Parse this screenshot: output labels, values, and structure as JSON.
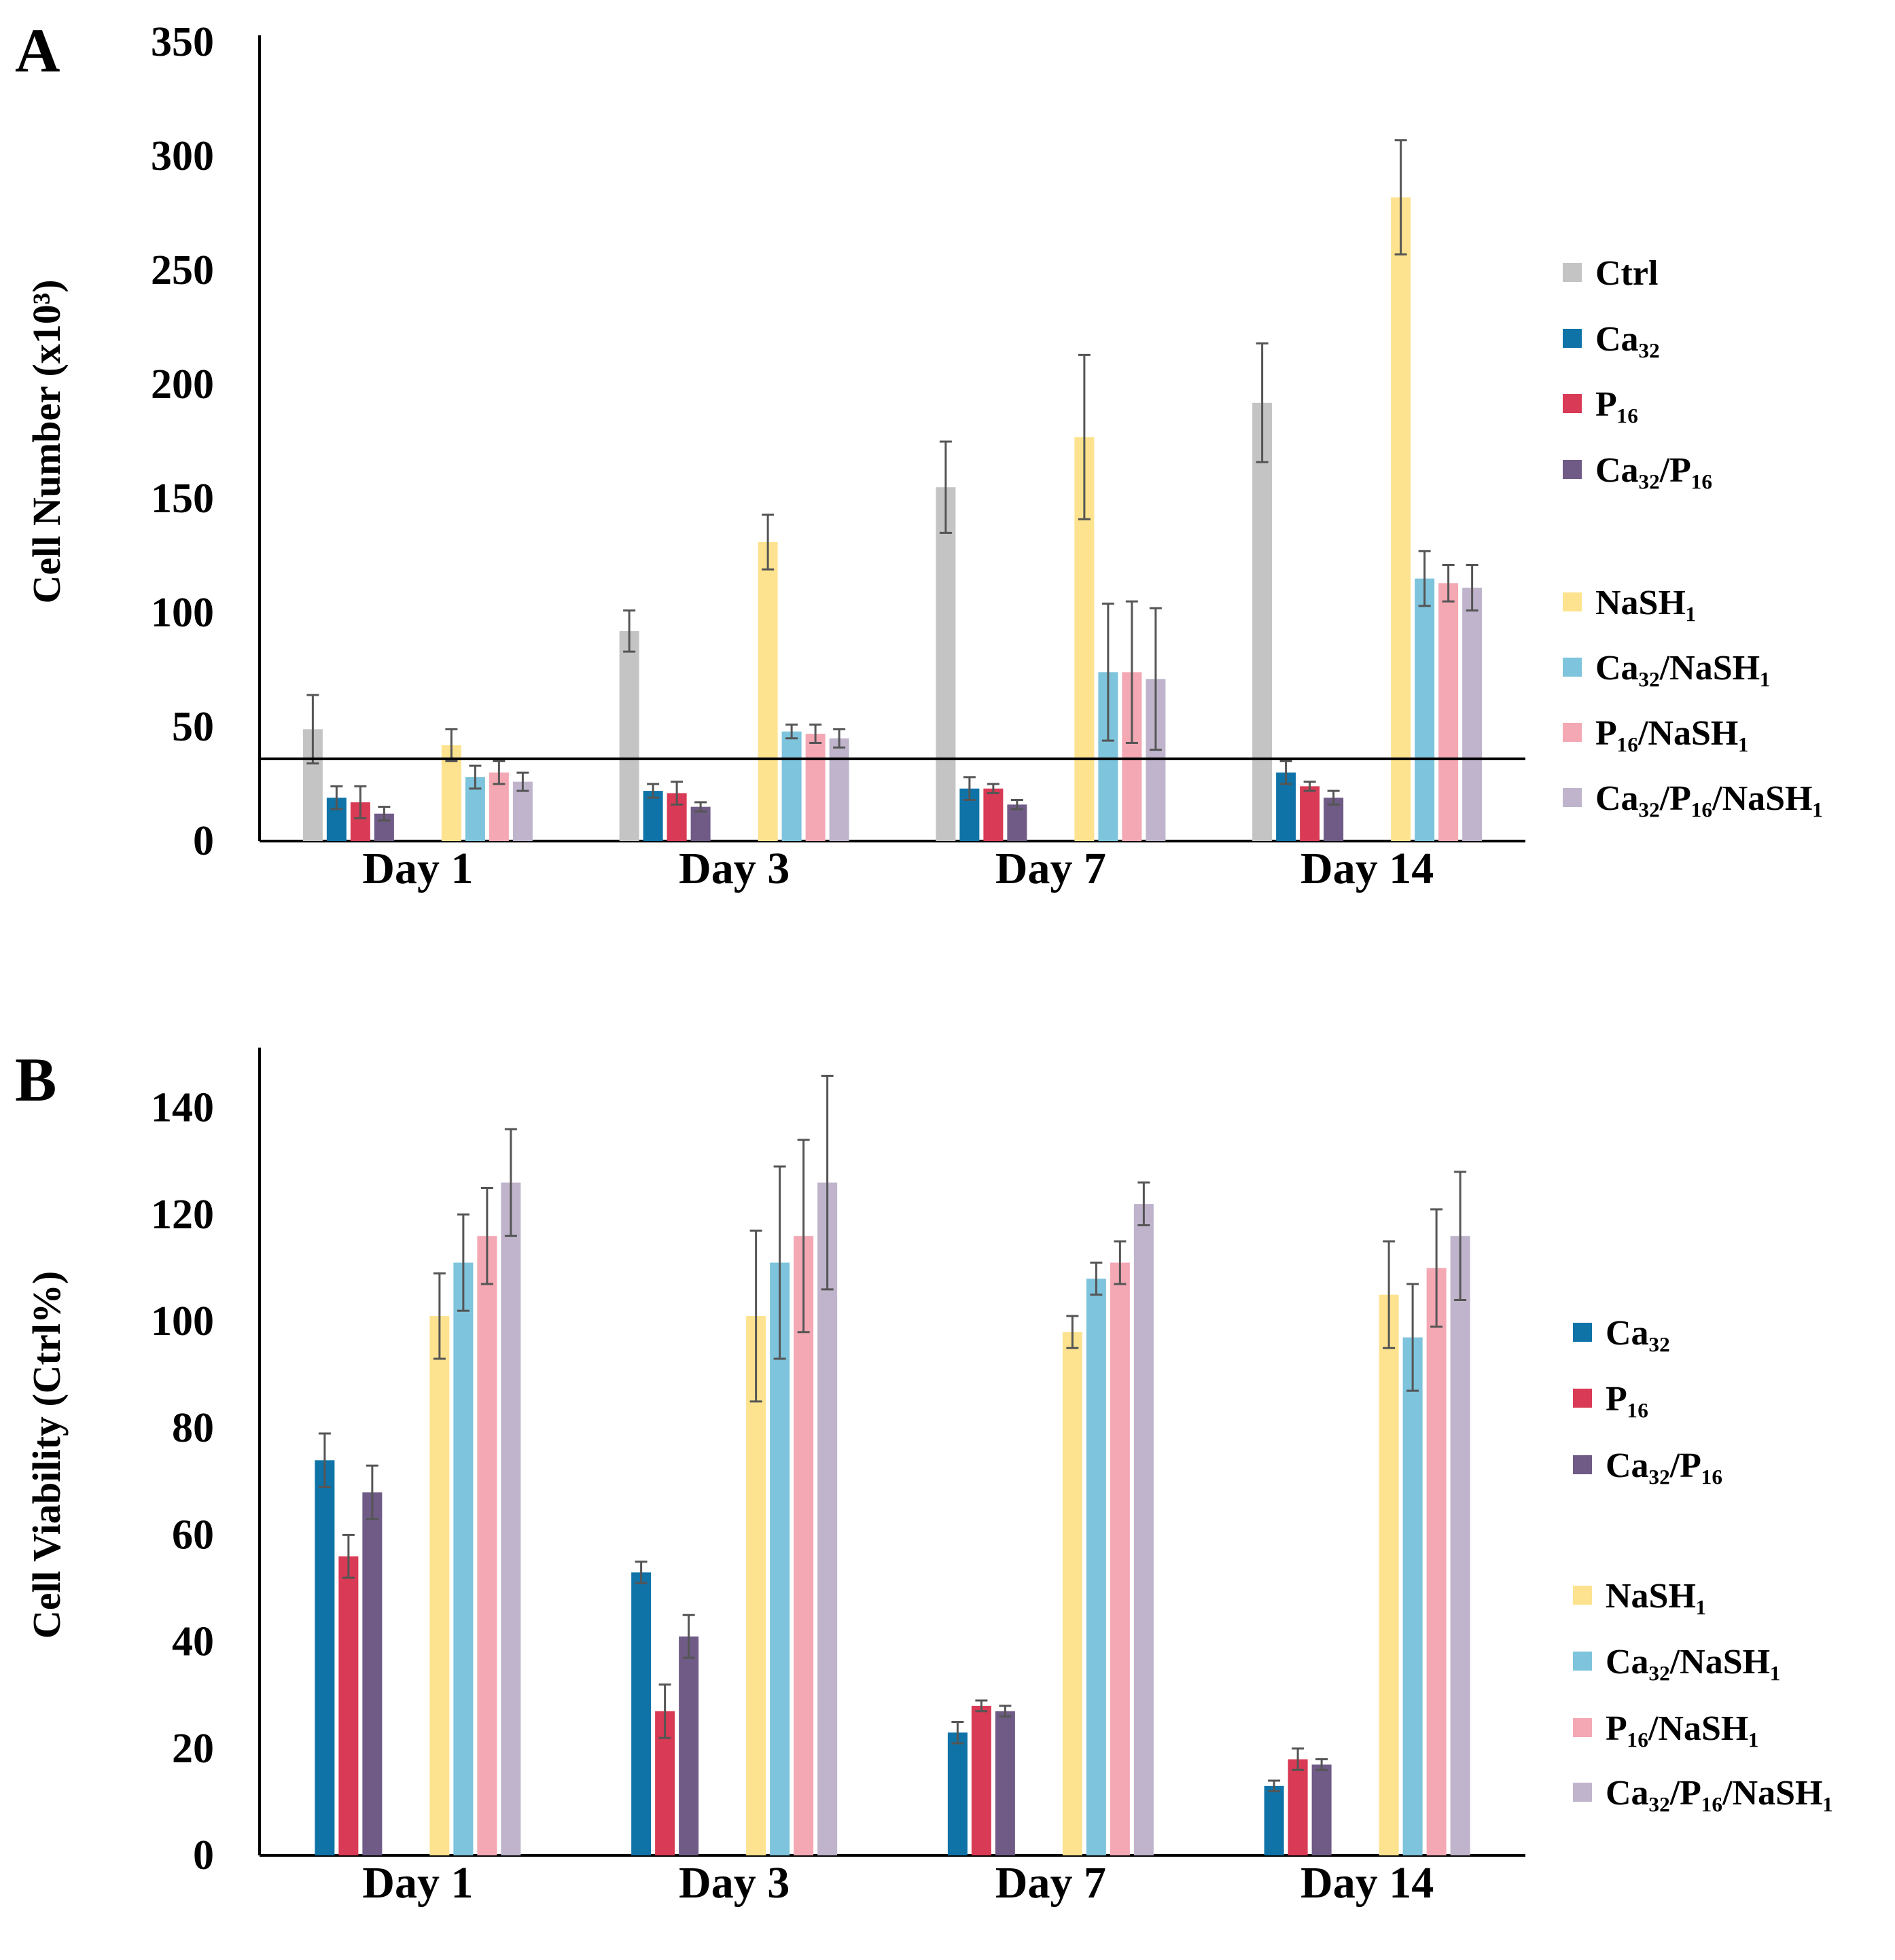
{
  "chart_data": [
    {
      "type": "bar",
      "panel": "A",
      "title": "",
      "xlabel": "",
      "ylabel": "Cell Number (x10³)",
      "ylim": [
        0,
        350
      ],
      "yticks": [
        0,
        50,
        100,
        150,
        200,
        250,
        300,
        350
      ],
      "reference_line": 36,
      "categories": [
        "Day 1",
        "Day 3",
        "Day 7",
        "Day 14"
      ],
      "series": [
        {
          "name": "Ctrl",
          "color": "#c4c4c4",
          "values": [
            49,
            92,
            155,
            192
          ],
          "errors": [
            15,
            9,
            20,
            26
          ]
        },
        {
          "name": "Ca₃₂",
          "color": "#0f73a8",
          "values": [
            19,
            22,
            23,
            30
          ],
          "errors": [
            5,
            3,
            5,
            5
          ]
        },
        {
          "name": "P₁₆",
          "color": "#d93a55",
          "values": [
            17,
            21,
            23,
            24
          ],
          "errors": [
            7,
            5,
            2,
            2
          ]
        },
        {
          "name": "Ca₃₂/P₁₆",
          "color": "#6f5b86",
          "values": [
            12,
            15,
            16,
            19
          ],
          "errors": [
            3,
            2,
            2,
            3
          ]
        },
        {
          "name": "NaSH₁",
          "color": "#fde38f",
          "values": [
            42,
            131,
            177,
            282
          ],
          "errors": [
            7,
            12,
            36,
            25
          ]
        },
        {
          "name": "Ca₃₂/NaSH₁",
          "color": "#7dc4dc",
          "values": [
            28,
            48,
            74,
            115
          ],
          "errors": [
            5,
            3,
            30,
            12
          ]
        },
        {
          "name": "P₁₆/NaSH₁",
          "color": "#f3a8b3",
          "values": [
            30,
            47,
            74,
            113
          ],
          "errors": [
            5,
            4,
            31,
            8
          ]
        },
        {
          "name": "Ca₃₂/P₁₆/NaSH₁",
          "color": "#bfb4cc",
          "values": [
            26,
            45,
            71,
            111
          ],
          "errors": [
            4,
            4,
            31,
            10
          ]
        }
      ]
    },
    {
      "type": "bar",
      "panel": "B",
      "title": "",
      "xlabel": "",
      "ylabel": "Cell Viability (Ctrl%)",
      "ylim": [
        0,
        150
      ],
      "yticks": [
        0,
        20,
        40,
        60,
        80,
        100,
        120,
        140
      ],
      "categories": [
        "Day 1",
        "Day 3",
        "Day 7",
        "Day 14"
      ],
      "series": [
        {
          "name": "Ca₃₂",
          "color": "#0f73a8",
          "values": [
            74,
            53,
            23,
            13
          ],
          "errors": [
            5,
            2,
            2,
            1
          ]
        },
        {
          "name": "P₁₆",
          "color": "#d93a55",
          "values": [
            56,
            27,
            28,
            18
          ],
          "errors": [
            4,
            5,
            1,
            2
          ]
        },
        {
          "name": "Ca₃₂/P₁₆",
          "color": "#6f5b86",
          "values": [
            68,
            41,
            27,
            17
          ],
          "errors": [
            5,
            4,
            1,
            1
          ]
        },
        {
          "name": "NaSH₁",
          "color": "#fde38f",
          "values": [
            101,
            101,
            98,
            105
          ],
          "errors": [
            8,
            16,
            3,
            10
          ]
        },
        {
          "name": "Ca₃₂/NaSH₁",
          "color": "#7dc4dc",
          "values": [
            111,
            111,
            108,
            97
          ],
          "errors": [
            9,
            18,
            3,
            10
          ]
        },
        {
          "name": "P₁₆/NaSH₁",
          "color": "#f3a8b3",
          "values": [
            116,
            116,
            111,
            110
          ],
          "errors": [
            9,
            18,
            4,
            11
          ]
        },
        {
          "name": "Ca₃₂/P₁₆/NaSH₁",
          "color": "#bfb4cc",
          "values": [
            126,
            126,
            122,
            116
          ],
          "errors": [
            10,
            20,
            4,
            12
          ]
        }
      ]
    }
  ]
}
